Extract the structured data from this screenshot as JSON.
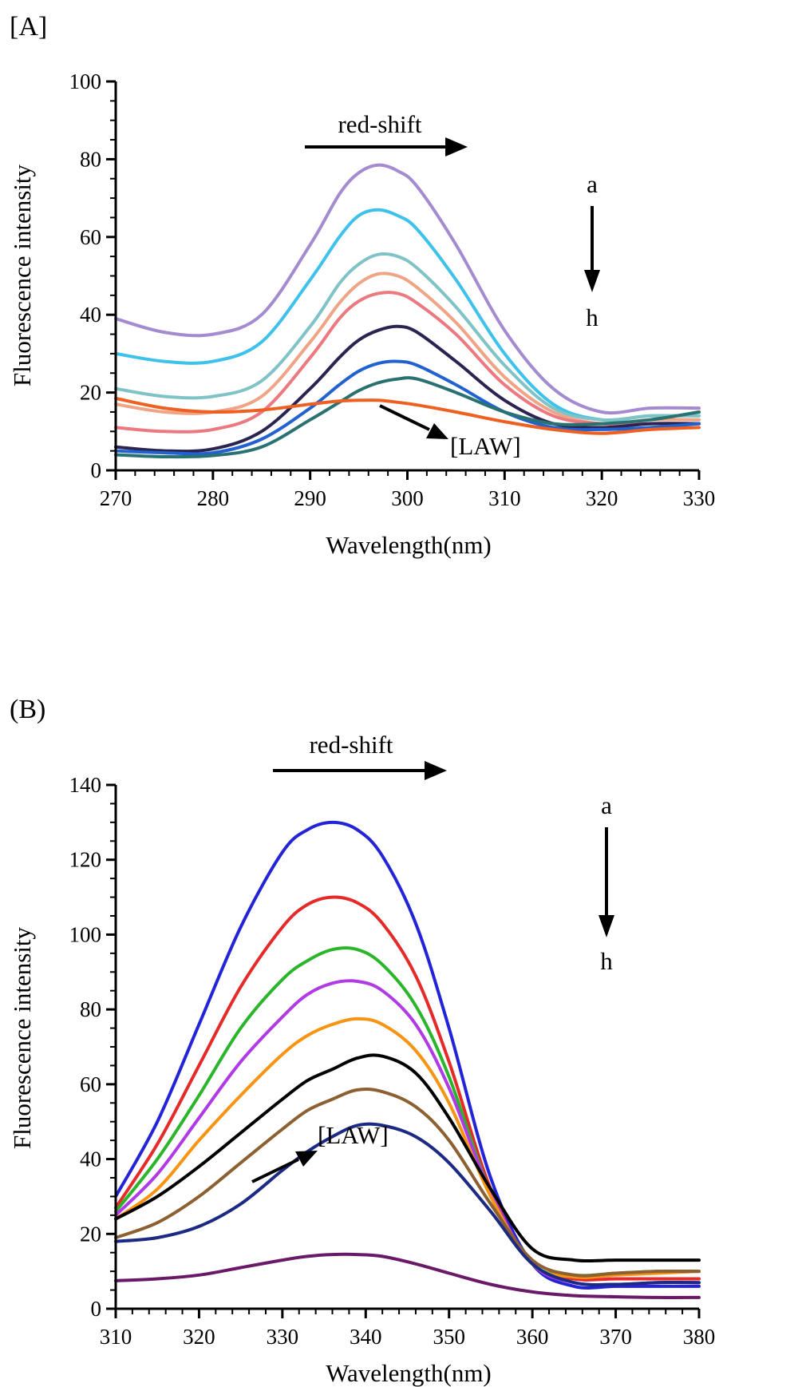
{
  "chart_data": [
    {
      "type": "line",
      "panel_label": "[A]",
      "xlabel": "Wavelength(nm)",
      "ylabel": "Fluorescence intensity",
      "xlim": [
        270,
        330
      ],
      "ylim": [
        0,
        100
      ],
      "x_ticks": [
        270,
        280,
        290,
        300,
        310,
        320,
        330
      ],
      "y_ticks": [
        0,
        20,
        40,
        60,
        80,
        100
      ],
      "grid": false,
      "annotations": {
        "shift_label": "red-shift",
        "trend_start": "a",
        "trend_end": "h",
        "law_label": "[LAW]"
      },
      "x": [
        270,
        275,
        280,
        285,
        290,
        293,
        295,
        297,
        299,
        301,
        305,
        310,
        315,
        320,
        325,
        330
      ],
      "series": [
        {
          "color": "#a48bd0",
          "values": [
            39,
            35.5,
            35,
            40,
            58,
            71,
            76.5,
            78.5,
            77,
            73,
            58,
            36,
            21,
            15,
            16,
            16
          ]
        },
        {
          "color": "#3ec1ea",
          "values": [
            30,
            28,
            28,
            33,
            49,
            60,
            65.5,
            67,
            65.5,
            62,
            49,
            30,
            17,
            13,
            14,
            14
          ]
        },
        {
          "color": "#7fc3c6",
          "values": [
            21,
            19,
            19,
            23,
            37,
            48,
            53,
            55.5,
            55,
            52,
            42,
            27,
            16,
            13,
            14,
            14
          ]
        },
        {
          "color": "#f0a486",
          "values": [
            17,
            15,
            15,
            19,
            33,
            43,
            48,
            50.5,
            50,
            47,
            38,
            24,
            15,
            12,
            13,
            13
          ]
        },
        {
          "color": "#ec7880",
          "values": [
            11,
            10,
            10.5,
            15,
            29,
            39,
            43.5,
            45.5,
            45.5,
            43,
            35,
            22,
            14,
            12,
            12,
            12
          ]
        },
        {
          "color": "#2a2450",
          "values": [
            6,
            5,
            5.5,
            10,
            21,
            29,
            33.5,
            36,
            37,
            35.5,
            28,
            18,
            12,
            11,
            12,
            12
          ]
        },
        {
          "color": "#2262d0",
          "values": [
            5,
            4.5,
            4.5,
            8,
            16,
            22,
            25.5,
            27.5,
            28,
            27,
            22,
            15,
            11,
            10.5,
            11,
            12
          ]
        },
        {
          "color": "#2a7272",
          "values": [
            4,
            3.5,
            3.8,
            6,
            13,
            17.5,
            20.5,
            22.5,
            23.5,
            23.5,
            20,
            15,
            12,
            12,
            13,
            15
          ]
        },
        {
          "color": "#ee5f22",
          "values": [
            18.5,
            16,
            15,
            15.5,
            17,
            17.8,
            18,
            18,
            17.5,
            16.8,
            15,
            12.5,
            10.5,
            9.5,
            10.5,
            11
          ]
        }
      ]
    },
    {
      "type": "line",
      "panel_label": "(B)",
      "xlabel": "Wavelength(nm)",
      "ylabel": "Fluorescence intensity",
      "xlim": [
        310,
        380
      ],
      "ylim": [
        0,
        140
      ],
      "x_ticks": [
        310,
        320,
        330,
        340,
        350,
        360,
        370,
        380
      ],
      "y_ticks": [
        0,
        20,
        40,
        60,
        80,
        100,
        120,
        140
      ],
      "grid": false,
      "annotations": {
        "shift_label": "red-shift",
        "trend_start": "a",
        "trend_end": "h",
        "law_label": "[LAW]"
      },
      "x": [
        310,
        315,
        320,
        325,
        330,
        333,
        336,
        339,
        342,
        346,
        350,
        355,
        360,
        365,
        370,
        375,
        380
      ],
      "series": [
        {
          "color": "#2323d8",
          "values": [
            30,
            50,
            76,
            102,
            122,
            128,
            130,
            128,
            121,
            103,
            75,
            35,
            12,
            6,
            6,
            6,
            6
          ]
        },
        {
          "color": "#e52a2a",
          "values": [
            27,
            44,
            65,
            86,
            102,
            108,
            110,
            108.5,
            103,
            89,
            66,
            32,
            12,
            8,
            8,
            8,
            8
          ]
        },
        {
          "color": "#2bb52b",
          "values": [
            26,
            40,
            57,
            75,
            88,
            93,
            96,
            96,
            92,
            81,
            62,
            31,
            12,
            9,
            9.5,
            10,
            10
          ]
        },
        {
          "color": "#b03ae6",
          "values": [
            25,
            36,
            51,
            66,
            78,
            84,
            87,
            87.5,
            85,
            76,
            59,
            31,
            12,
            7,
            6.5,
            7,
            7
          ]
        },
        {
          "color": "#f79414",
          "values": [
            24,
            32,
            45,
            57,
            68,
            73,
            76,
            77.5,
            76,
            69,
            55,
            30,
            12,
            8.5,
            9,
            9.5,
            10
          ]
        },
        {
          "color": "#000000",
          "values": [
            24,
            30,
            38,
            47,
            56,
            61,
            64,
            67,
            67.5,
            63,
            51,
            32,
            16,
            13,
            13,
            13,
            13
          ]
        },
        {
          "color": "#8c6030",
          "values": [
            19,
            23,
            30,
            39,
            48,
            53,
            56,
            58.5,
            58,
            54,
            45,
            28,
            13,
            9,
            9.5,
            10,
            10
          ]
        },
        {
          "color": "#1c2a84",
          "values": [
            18,
            19,
            22,
            28,
            37,
            42,
            46,
            49,
            49,
            46,
            39,
            26,
            12,
            7,
            6.5,
            7,
            7
          ]
        },
        {
          "color": "#6a1868",
          "values": [
            7.5,
            8,
            9,
            11,
            13,
            14,
            14.5,
            14.5,
            14,
            12,
            9.5,
            6.5,
            4.5,
            3.5,
            3.2,
            3,
            3
          ]
        }
      ]
    }
  ]
}
